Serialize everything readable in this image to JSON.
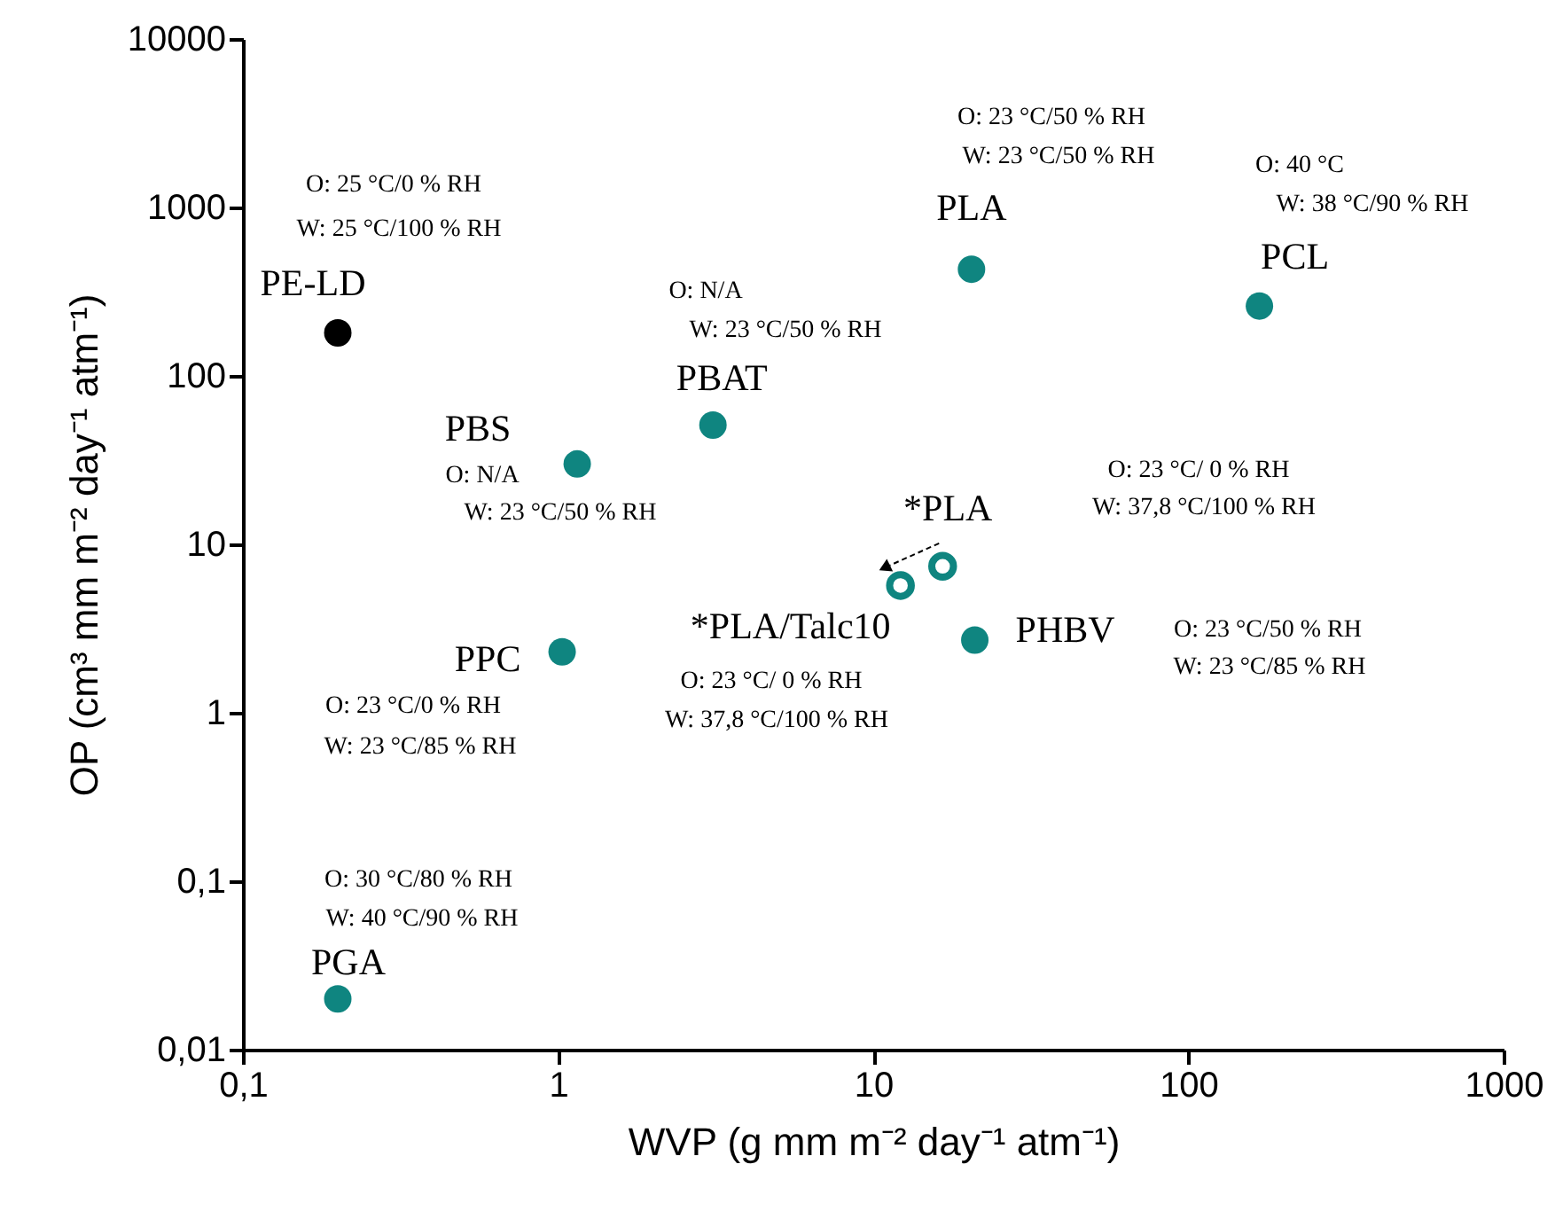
{
  "chart_data": {
    "type": "scatter",
    "xlabel": "WVP (g mm m⁻² day⁻¹ atm⁻¹)",
    "ylabel": "OP (cm³ mm m⁻² day⁻¹ atm⁻¹)",
    "log": "xy",
    "grid": false,
    "marker": "circle",
    "xlim": [
      0.1,
      1000
    ],
    "xticks": [
      {
        "value": 0.1,
        "label": "0,1"
      },
      1,
      10,
      100,
      1000
    ],
    "ylim": [
      0.01,
      10000
    ],
    "yticks": [
      {
        "value": 0.01,
        "label": "0,01"
      },
      {
        "value": 0.1,
        "label": "0,1"
      },
      1,
      10,
      100,
      1000,
      10000
    ],
    "series": [
      {
        "color": "#000000",
        "x": [
          0.2
        ],
        "values": [
          180
        ],
        "value_labels": [
          "PE-LD"
        ]
      },
      {
        "color": "#0f8580",
        "x": [
          1.15,
          3.1,
          20.5,
          168,
          1.03,
          0.2,
          21
        ],
        "values": [
          30,
          51,
          430,
          260,
          2.3,
          0.02,
          2.7
        ],
        "value_labels": [
          "PBS",
          "PBAT",
          "PLA",
          "PCL",
          "PPC",
          "PGA",
          "PHBV"
        ]
      },
      {
        "color": "#0f8580",
        "x": [
          16.6,
          12.2
        ],
        "values": [
          7.4,
          5.7
        ],
        "value_labels": [
          "*PLA",
          "*PLA/Talc10"
        ]
      }
    ],
    "annotations": [
      "O: 25 °C/0 % RH",
      "W: 25 °C/100 % RH",
      "O:  N/A",
      "W: 23 °C/50 % RH",
      "O:  N/A",
      "W: 23 °C/50 % RH",
      "O: 23 °C/50 % RH",
      "W: 23 °C/50 % RH",
      "O: 40 °C",
      "W: 38 °C/90 % RH",
      "O: 23 °C/ 0 % RH",
      "W: 37,8 °C/100 % RH",
      "O: 23 °C/ 0 % RH",
      "W: 37,8 °C/100 % RH",
      "O: 23 °C/50 % RH",
      "W: 23 °C/85 % RH",
      "O: 23 °C/0 % RH",
      "W: 23 °C/85 % RH",
      "O: 30 °C/80 % RH",
      "W: 40 °C/90 % RH"
    ]
  }
}
